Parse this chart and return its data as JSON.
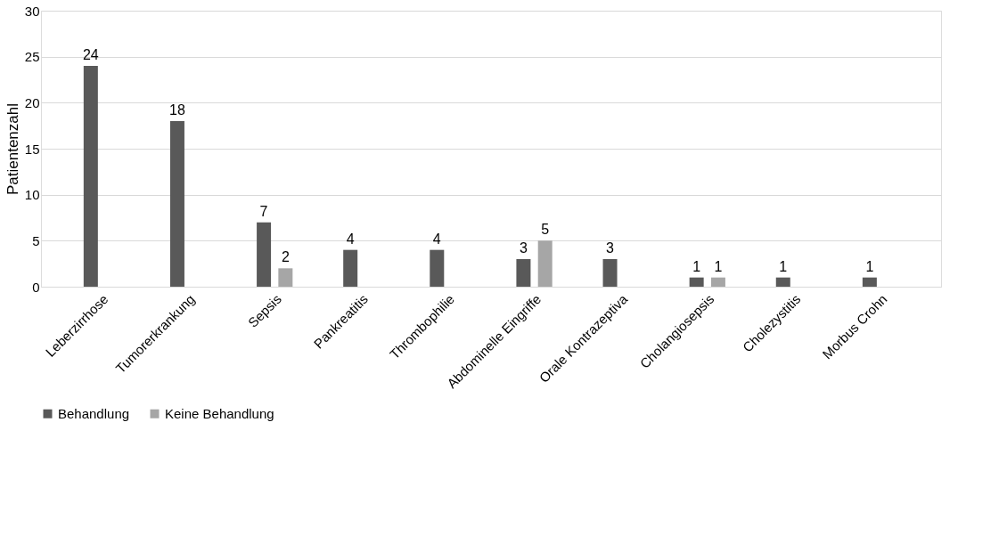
{
  "chart_data": {
    "type": "bar",
    "ylabel": "Patientenzahl",
    "categories": [
      "Leberzirrhose",
      "Tumorerkrankung",
      "Sepsis",
      "Pankreatitis",
      "Thrombophilie",
      "Abdominelle Eingriffe",
      "Orale Kontrazeptiva",
      "Cholangiosepsis",
      "Cholezystitis",
      "Morbus Crohn"
    ],
    "series": [
      {
        "name": "Behandlung",
        "color": "#595959",
        "values": [
          24,
          18,
          7,
          4,
          4,
          3,
          3,
          1,
          1,
          1
        ]
      },
      {
        "name": "Keine Behandlung",
        "color": "#a6a6a6",
        "values": [
          null,
          null,
          2,
          null,
          null,
          5,
          null,
          1,
          null,
          null
        ]
      }
    ],
    "ylim": [
      0,
      30
    ],
    "yticks": [
      0,
      5,
      10,
      15,
      20,
      25,
      30
    ],
    "grid": "y",
    "legend": "bottom",
    "data_labels": true
  }
}
